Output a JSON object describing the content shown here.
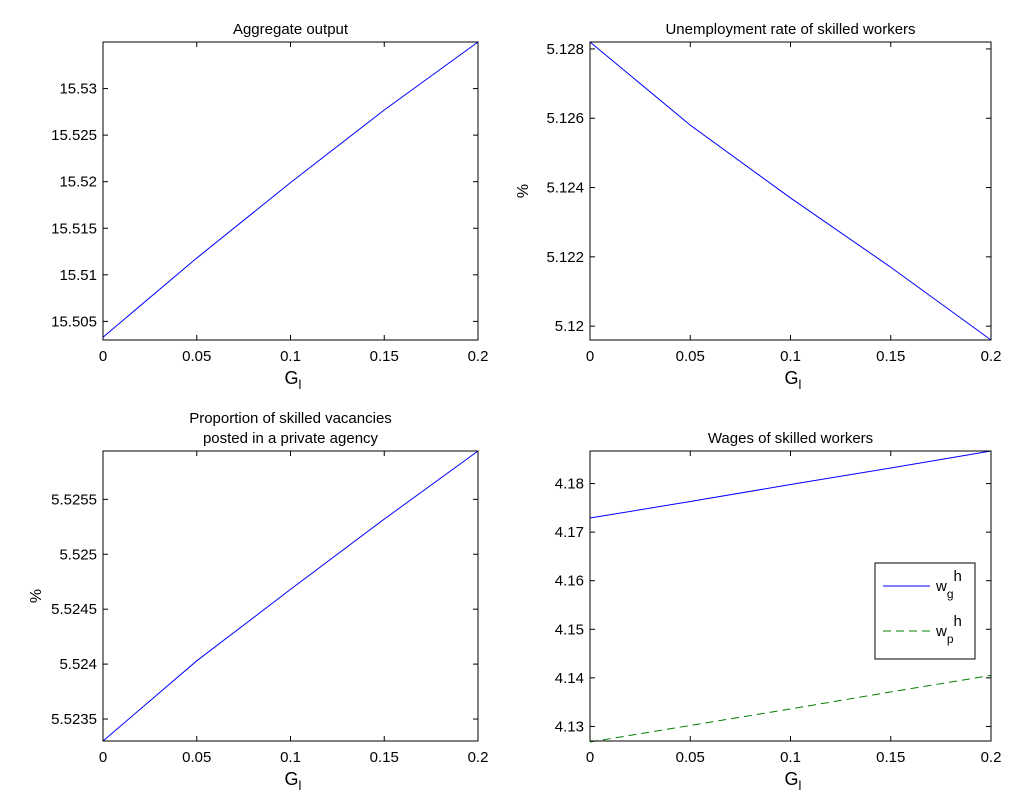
{
  "chart_data": [
    {
      "type": "line",
      "title_lines": [
        "Aggregate output"
      ],
      "xlabel": "G",
      "xlabel_sub": "l",
      "ylabel": "",
      "xlim": [
        0,
        0.2
      ],
      "ylim": [
        15.503,
        15.535
      ],
      "xticks": [
        0,
        0.05,
        0.1,
        0.15,
        0.2
      ],
      "xtick_labels": [
        "0",
        "0.05",
        "0.1",
        "0.15",
        "0.2"
      ],
      "yticks": [
        15.505,
        15.51,
        15.515,
        15.52,
        15.525,
        15.53
      ],
      "ytick_labels": [
        "15.505",
        "15.51",
        "15.515",
        "15.52",
        "15.525",
        "15.53"
      ],
      "series": [
        {
          "color": "#0000ff",
          "dash": "solid",
          "x": [
            0,
            0.05,
            0.1,
            0.15,
            0.2
          ],
          "y": [
            15.5033,
            15.5118,
            15.5199,
            15.5277,
            15.535
          ]
        }
      ]
    },
    {
      "type": "line",
      "title_lines": [
        "Unemployment rate of skilled workers"
      ],
      "xlabel": "G",
      "xlabel_sub": "l",
      "ylabel": "%",
      "xlim": [
        0,
        0.2
      ],
      "ylim": [
        5.1196,
        5.1282
      ],
      "xticks": [
        0,
        0.05,
        0.1,
        0.15,
        0.2
      ],
      "xtick_labels": [
        "0",
        "0.05",
        "0.1",
        "0.15",
        "0.2"
      ],
      "yticks": [
        5.12,
        5.122,
        5.124,
        5.126,
        5.128
      ],
      "ytick_labels": [
        "5.12",
        "5.122",
        "5.124",
        "5.126",
        "5.128"
      ],
      "series": [
        {
          "color": "#0000ff",
          "dash": "solid",
          "x": [
            0,
            0.05,
            0.1,
            0.15,
            0.2
          ],
          "y": [
            5.1282,
            5.1258,
            5.1237,
            5.1217,
            5.1196
          ]
        }
      ]
    },
    {
      "type": "line",
      "title_lines": [
        "Proportion of skilled vacancies",
        "posted in a private agency"
      ],
      "xlabel": "G",
      "xlabel_sub": "l",
      "ylabel": "%",
      "xlim": [
        0,
        0.2
      ],
      "ylim": [
        5.5233,
        5.52594
      ],
      "xticks": [
        0,
        0.05,
        0.1,
        0.15,
        0.2
      ],
      "xtick_labels": [
        "0",
        "0.05",
        "0.1",
        "0.15",
        "0.2"
      ],
      "yticks": [
        5.5235,
        5.524,
        5.5245,
        5.525,
        5.5255
      ],
      "ytick_labels": [
        "5.5235",
        "5.524",
        "5.5245",
        "5.525",
        "5.5255"
      ],
      "series": [
        {
          "color": "#0000ff",
          "dash": "solid",
          "x": [
            0,
            0.05,
            0.1,
            0.15,
            0.2
          ],
          "y": [
            5.5233,
            5.52403,
            5.52468,
            5.52532,
            5.52594
          ]
        }
      ]
    },
    {
      "type": "line",
      "title_lines": [
        "Wages of skilled workers"
      ],
      "xlabel": "G",
      "xlabel_sub": "l",
      "ylabel": "",
      "xlim": [
        0,
        0.2
      ],
      "ylim": [
        4.127,
        4.1867
      ],
      "xticks": [
        0,
        0.05,
        0.1,
        0.15,
        0.2
      ],
      "xtick_labels": [
        "0",
        "0.05",
        "0.1",
        "0.15",
        "0.2"
      ],
      "yticks": [
        4.13,
        4.14,
        4.15,
        4.16,
        4.17,
        4.18
      ],
      "ytick_labels": [
        "4.13",
        "4.14",
        "4.15",
        "4.16",
        "4.17",
        "4.18"
      ],
      "legend_position": "right",
      "series": [
        {
          "legend_main": "w",
          "legend_sub": "g",
          "legend_sup": "h",
          "color": "#0000ff",
          "dash": "solid",
          "x": [
            0,
            0.05,
            0.1,
            0.15,
            0.2
          ],
          "y": [
            4.1729,
            4.1763,
            4.1798,
            4.1832,
            4.1867
          ]
        },
        {
          "legend_main": "w",
          "legend_sub": "p",
          "legend_sup": "h",
          "color": "#008000",
          "dash": "dashed",
          "x": [
            0,
            0.05,
            0.1,
            0.15,
            0.2
          ],
          "y": [
            4.1268,
            4.1302,
            4.1336,
            4.1371,
            4.1405
          ]
        }
      ]
    }
  ]
}
